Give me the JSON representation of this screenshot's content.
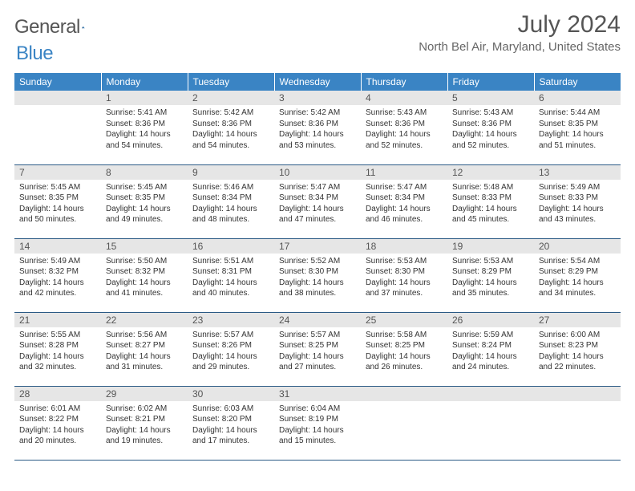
{
  "logo": {
    "general": "General",
    "blue": "Blue"
  },
  "title": "July 2024",
  "location": "North Bel Air, Maryland, United States",
  "colors": {
    "header_bg": "#3a84c4",
    "header_text": "#ffffff",
    "grid_line": "#2b5a85",
    "daynum_bg": "#e6e6e6"
  },
  "weekdays": [
    "Sunday",
    "Monday",
    "Tuesday",
    "Wednesday",
    "Thursday",
    "Friday",
    "Saturday"
  ],
  "startOffset": 1,
  "days": [
    {
      "n": "1",
      "sunrise": "5:41 AM",
      "sunset": "8:36 PM",
      "daylight": "14 hours and 54 minutes."
    },
    {
      "n": "2",
      "sunrise": "5:42 AM",
      "sunset": "8:36 PM",
      "daylight": "14 hours and 54 minutes."
    },
    {
      "n": "3",
      "sunrise": "5:42 AM",
      "sunset": "8:36 PM",
      "daylight": "14 hours and 53 minutes."
    },
    {
      "n": "4",
      "sunrise": "5:43 AM",
      "sunset": "8:36 PM",
      "daylight": "14 hours and 52 minutes."
    },
    {
      "n": "5",
      "sunrise": "5:43 AM",
      "sunset": "8:36 PM",
      "daylight": "14 hours and 52 minutes."
    },
    {
      "n": "6",
      "sunrise": "5:44 AM",
      "sunset": "8:35 PM",
      "daylight": "14 hours and 51 minutes."
    },
    {
      "n": "7",
      "sunrise": "5:45 AM",
      "sunset": "8:35 PM",
      "daylight": "14 hours and 50 minutes."
    },
    {
      "n": "8",
      "sunrise": "5:45 AM",
      "sunset": "8:35 PM",
      "daylight": "14 hours and 49 minutes."
    },
    {
      "n": "9",
      "sunrise": "5:46 AM",
      "sunset": "8:34 PM",
      "daylight": "14 hours and 48 minutes."
    },
    {
      "n": "10",
      "sunrise": "5:47 AM",
      "sunset": "8:34 PM",
      "daylight": "14 hours and 47 minutes."
    },
    {
      "n": "11",
      "sunrise": "5:47 AM",
      "sunset": "8:34 PM",
      "daylight": "14 hours and 46 minutes."
    },
    {
      "n": "12",
      "sunrise": "5:48 AM",
      "sunset": "8:33 PM",
      "daylight": "14 hours and 45 minutes."
    },
    {
      "n": "13",
      "sunrise": "5:49 AM",
      "sunset": "8:33 PM",
      "daylight": "14 hours and 43 minutes."
    },
    {
      "n": "14",
      "sunrise": "5:49 AM",
      "sunset": "8:32 PM",
      "daylight": "14 hours and 42 minutes."
    },
    {
      "n": "15",
      "sunrise": "5:50 AM",
      "sunset": "8:32 PM",
      "daylight": "14 hours and 41 minutes."
    },
    {
      "n": "16",
      "sunrise": "5:51 AM",
      "sunset": "8:31 PM",
      "daylight": "14 hours and 40 minutes."
    },
    {
      "n": "17",
      "sunrise": "5:52 AM",
      "sunset": "8:30 PM",
      "daylight": "14 hours and 38 minutes."
    },
    {
      "n": "18",
      "sunrise": "5:53 AM",
      "sunset": "8:30 PM",
      "daylight": "14 hours and 37 minutes."
    },
    {
      "n": "19",
      "sunrise": "5:53 AM",
      "sunset": "8:29 PM",
      "daylight": "14 hours and 35 minutes."
    },
    {
      "n": "20",
      "sunrise": "5:54 AM",
      "sunset": "8:29 PM",
      "daylight": "14 hours and 34 minutes."
    },
    {
      "n": "21",
      "sunrise": "5:55 AM",
      "sunset": "8:28 PM",
      "daylight": "14 hours and 32 minutes."
    },
    {
      "n": "22",
      "sunrise": "5:56 AM",
      "sunset": "8:27 PM",
      "daylight": "14 hours and 31 minutes."
    },
    {
      "n": "23",
      "sunrise": "5:57 AM",
      "sunset": "8:26 PM",
      "daylight": "14 hours and 29 minutes."
    },
    {
      "n": "24",
      "sunrise": "5:57 AM",
      "sunset": "8:25 PM",
      "daylight": "14 hours and 27 minutes."
    },
    {
      "n": "25",
      "sunrise": "5:58 AM",
      "sunset": "8:25 PM",
      "daylight": "14 hours and 26 minutes."
    },
    {
      "n": "26",
      "sunrise": "5:59 AM",
      "sunset": "8:24 PM",
      "daylight": "14 hours and 24 minutes."
    },
    {
      "n": "27",
      "sunrise": "6:00 AM",
      "sunset": "8:23 PM",
      "daylight": "14 hours and 22 minutes."
    },
    {
      "n": "28",
      "sunrise": "6:01 AM",
      "sunset": "8:22 PM",
      "daylight": "14 hours and 20 minutes."
    },
    {
      "n": "29",
      "sunrise": "6:02 AM",
      "sunset": "8:21 PM",
      "daylight": "14 hours and 19 minutes."
    },
    {
      "n": "30",
      "sunrise": "6:03 AM",
      "sunset": "8:20 PM",
      "daylight": "14 hours and 17 minutes."
    },
    {
      "n": "31",
      "sunrise": "6:04 AM",
      "sunset": "8:19 PM",
      "daylight": "14 hours and 15 minutes."
    }
  ],
  "labels": {
    "sunrise": "Sunrise: ",
    "sunset": "Sunset: ",
    "daylight": "Daylight: "
  }
}
